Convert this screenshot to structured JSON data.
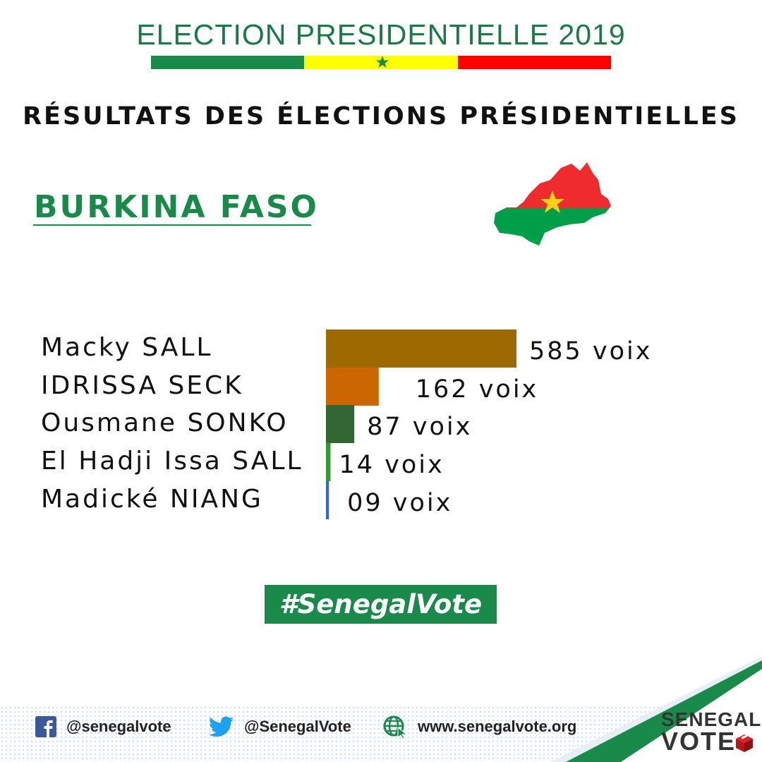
{
  "header": {
    "banner_title": "ELECTION PRESIDENTIELLE 2019",
    "flag_colors": [
      "#1a8a4a",
      "#ffff00",
      "#ff0000"
    ],
    "star_color": "#1a8a4a"
  },
  "main_title": "RÉSULTATS DES ÉLECTIONS PRÉSIDENTIELLES",
  "country": {
    "name": "BURKINA FASO",
    "map_icon": "burkina-faso-flag-map-icon",
    "map_colors": [
      "#ef2b2d",
      "#009e49",
      "#fcd116"
    ]
  },
  "chart_data": {
    "type": "bar",
    "orientation": "horizontal",
    "categories": [
      "Macky SALL",
      "IDRISSA SECK",
      "Ousmane SONKO",
      "El Hadji Issa SALL",
      "Madické NIANG"
    ],
    "values": [
      585,
      162,
      87,
      14,
      9
    ],
    "value_labels": [
      "585 voix",
      "162 voix",
      "87 voix",
      "14 voix",
      "09 voix"
    ],
    "colors": [
      "#9c6a00",
      "#cc6600",
      "#336633",
      "#339933",
      "#3366cc"
    ],
    "title": "",
    "xlabel": "",
    "ylabel": "",
    "grid": false
  },
  "hashtag": "#SenegalVote",
  "footer": {
    "facebook": {
      "icon": "facebook-icon",
      "handle": "@senegalvote"
    },
    "twitter": {
      "icon": "twitter-icon",
      "handle": "@SenegalVote"
    },
    "website": {
      "icon": "globe-icon",
      "url": "www.senegalvote.org"
    },
    "logo": {
      "line1": "SENEGAL",
      "line2": "VOTE"
    }
  }
}
